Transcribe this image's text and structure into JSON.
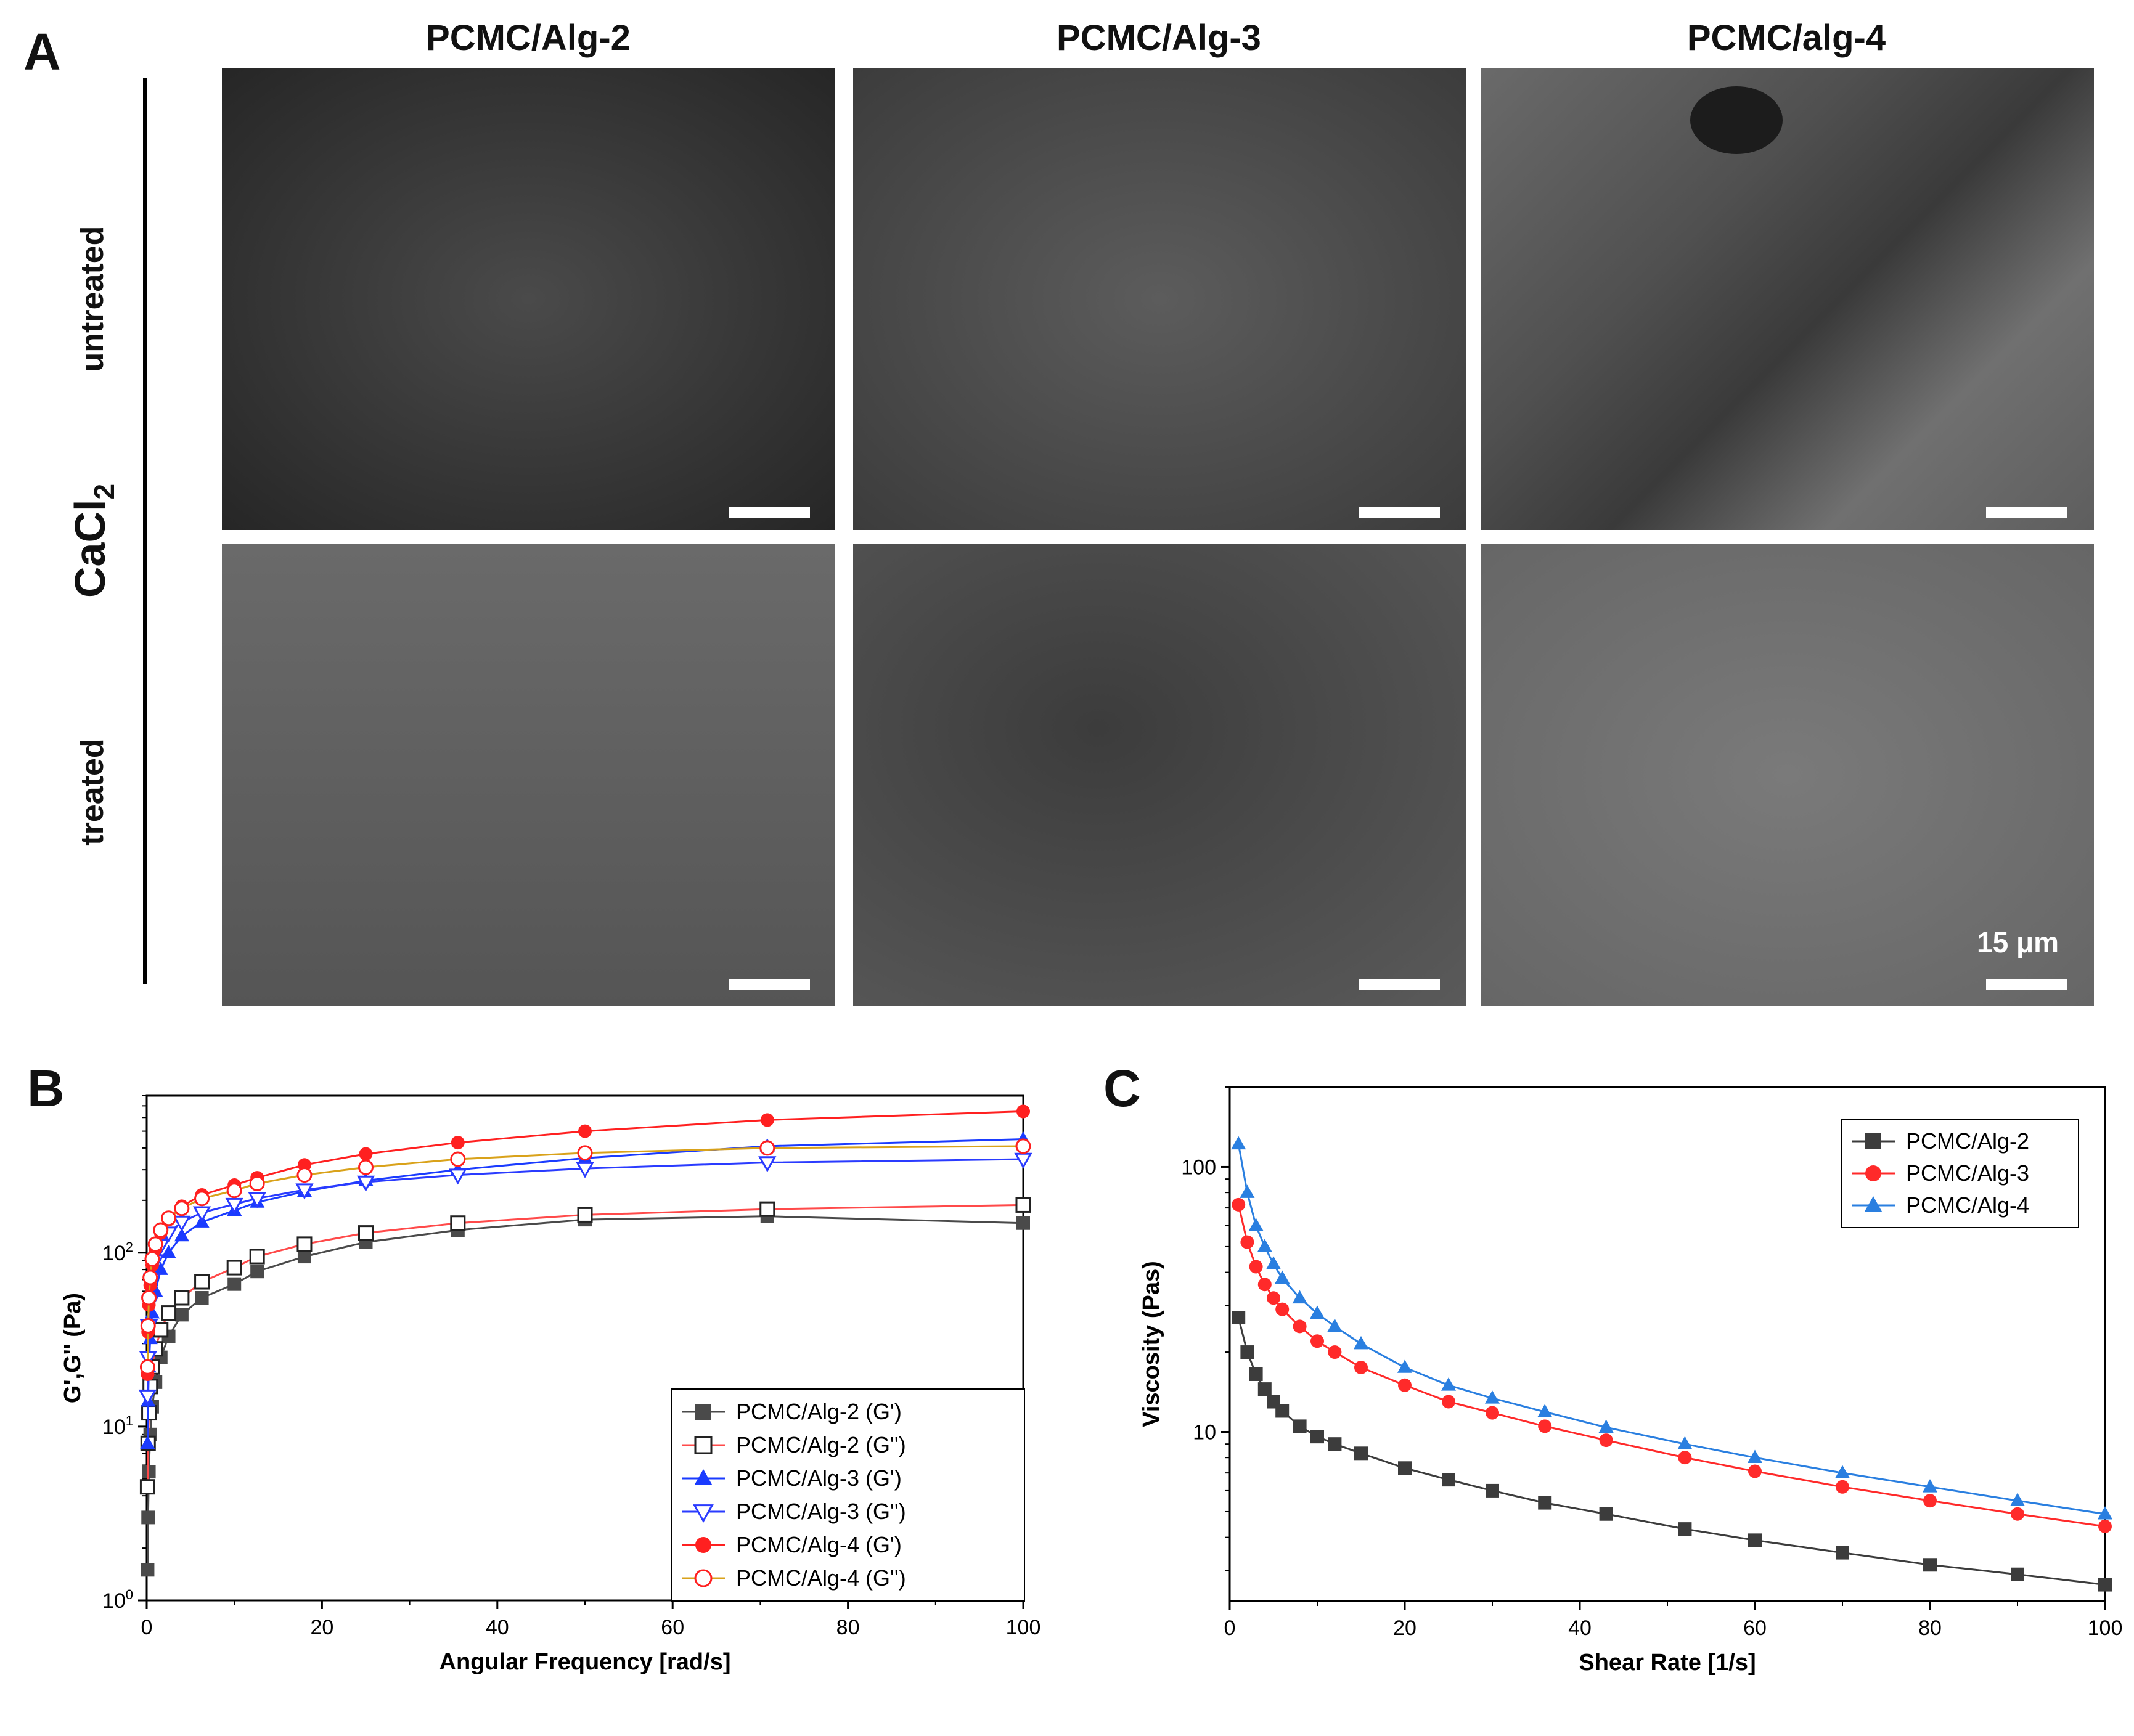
{
  "panel_a": {
    "letter": "A",
    "columns": [
      "PCMC/Alg-2",
      "PCMC/Alg-3",
      "PCMC/alg-4"
    ],
    "group_label_main": "CaCl",
    "group_label_sub": "2",
    "rows": [
      "untreated",
      "treated"
    ],
    "scale_label": "15 μm",
    "colors": {
      "sem_bg": "#5a5a5a",
      "scale_bar": "#ffffff"
    }
  },
  "panel_b": {
    "letter": "B"
  },
  "panel_c": {
    "letter": "C"
  },
  "chart_data": [
    {
      "type": "line",
      "id": "B",
      "xlabel": "Angular Frequency [rad/s]",
      "ylabel": "G',G'' (Pa)",
      "xlim": [
        0,
        100
      ],
      "ylim": [
        1,
        800
      ],
      "yscale": "log",
      "x_ticks": [
        "0",
        "20",
        "40",
        "60",
        "80",
        "100"
      ],
      "y_ticks": [
        {
          "base": "10",
          "exp": "0"
        },
        {
          "base": "10",
          "exp": "1"
        },
        {
          "base": "10",
          "exp": "2"
        }
      ],
      "legend_position": "bottom-right",
      "series": [
        {
          "name": "PCMC/Alg-2 (G')",
          "color": "#4a4a4a",
          "marker": "square-filled",
          "x": [
            0.1,
            0.16,
            0.25,
            0.4,
            0.63,
            1.0,
            1.6,
            2.5,
            4.0,
            6.3,
            10,
            12.6,
            18,
            25,
            35.5,
            50,
            70.8,
            100
          ],
          "y": [
            1.5,
            3.0,
            5.5,
            9.0,
            13,
            18,
            25,
            33,
            44,
            55,
            66,
            78,
            95,
            115,
            135,
            155,
            162,
            148
          ]
        },
        {
          "name": "PCMC/Alg-2 (G'')",
          "color": "#ff4a4a",
          "marker": "square-open",
          "marker_color": "#222222",
          "x": [
            0.1,
            0.16,
            0.25,
            0.4,
            0.63,
            1.0,
            1.6,
            2.5,
            4.0,
            6.3,
            10,
            12.6,
            18,
            25,
            35.5,
            50,
            70.8,
            100
          ],
          "y": [
            4.5,
            8,
            12,
            17,
            22,
            28,
            36,
            45,
            55,
            68,
            82,
            95,
            112,
            130,
            148,
            165,
            178,
            188
          ]
        },
        {
          "name": "PCMC/Alg-3 (G')",
          "color": "#1a3bff",
          "marker": "triangle-filled",
          "x": [
            0.1,
            0.16,
            0.25,
            0.4,
            0.63,
            1.0,
            1.6,
            2.5,
            4.0,
            6.3,
            10,
            12.6,
            18,
            25,
            35.5,
            50,
            70.8,
            100
          ],
          "y": [
            8,
            14,
            22,
            32,
            45,
            60,
            80,
            100,
            125,
            150,
            175,
            195,
            225,
            260,
            300,
            350,
            410,
            450
          ]
        },
        {
          "name": "PCMC/Alg-3 (G'')",
          "color": "#2a3bff",
          "marker": "triangle-down-open",
          "x": [
            0.1,
            0.16,
            0.25,
            0.4,
            0.63,
            1.0,
            1.6,
            2.5,
            4.0,
            6.3,
            10,
            12.6,
            18,
            25,
            35.5,
            50,
            70.8,
            100
          ],
          "y": [
            15,
            25,
            38,
            52,
            70,
            90,
            110,
            130,
            150,
            170,
            190,
            205,
            230,
            255,
            280,
            305,
            330,
            345
          ]
        },
        {
          "name": "PCMC/Alg-4 (G')",
          "color": "#ff2020",
          "marker": "circle-filled",
          "x": [
            0.1,
            0.16,
            0.25,
            0.4,
            0.63,
            1.0,
            1.6,
            2.5,
            4.0,
            6.3,
            10,
            12.6,
            18,
            25,
            35.5,
            50,
            70.8,
            100
          ],
          "y": [
            20,
            35,
            50,
            65,
            85,
            105,
            130,
            155,
            185,
            215,
            245,
            270,
            320,
            370,
            430,
            500,
            580,
            650
          ]
        },
        {
          "name": "PCMC/Alg-4 (G'')",
          "color": "#d9a21a",
          "marker": "circle-open",
          "marker_color": "#ff2020",
          "x": [
            0.1,
            0.16,
            0.25,
            0.4,
            0.63,
            1.0,
            1.6,
            2.5,
            4.0,
            6.3,
            10,
            12.6,
            18,
            25,
            35.5,
            50,
            70.8,
            100
          ],
          "y": [
            22,
            38,
            55,
            72,
            92,
            112,
            135,
            158,
            180,
            205,
            228,
            250,
            280,
            310,
            345,
            375,
            400,
            410
          ]
        }
      ]
    },
    {
      "type": "line",
      "id": "C",
      "xlabel": "Shear Rate [1/s]",
      "ylabel": "Viscosity (Pas)",
      "xlim": [
        0,
        100
      ],
      "ylim": [
        2.3,
        200
      ],
      "yscale": "log",
      "x_ticks": [
        "0",
        "20",
        "40",
        "60",
        "80",
        "100"
      ],
      "y_ticks": [
        "10",
        "100"
      ],
      "legend_position": "top-right",
      "series": [
        {
          "name": "PCMC/Alg-2",
          "color": "#3c3c3c",
          "marker": "square-filled",
          "x": [
            1,
            2,
            3,
            4,
            5,
            6,
            8,
            10,
            12,
            15,
            20,
            25,
            30,
            36,
            43,
            52,
            60,
            70,
            80,
            90,
            100
          ],
          "y": [
            27,
            20,
            16.5,
            14.5,
            13,
            12,
            10.5,
            9.6,
            9.0,
            8.3,
            7.3,
            6.6,
            6.0,
            5.4,
            4.9,
            4.3,
            3.9,
            3.5,
            3.15,
            2.9,
            2.65
          ]
        },
        {
          "name": "PCMC/Alg-3",
          "color": "#ff2a2a",
          "marker": "circle-filled",
          "x": [
            1,
            2,
            3,
            4,
            5,
            6,
            8,
            10,
            12,
            15,
            20,
            25,
            30,
            36,
            43,
            52,
            60,
            70,
            80,
            90,
            100
          ],
          "y": [
            72,
            52,
            42,
            36,
            32,
            29,
            25,
            22,
            20,
            17.5,
            15,
            13,
            11.8,
            10.5,
            9.3,
            8.0,
            7.1,
            6.2,
            5.5,
            4.9,
            4.4
          ]
        },
        {
          "name": "PCMC/Alg-4",
          "color": "#2a7fe0",
          "marker": "triangle-filled",
          "x": [
            1,
            2,
            3,
            4,
            5,
            6,
            8,
            10,
            12,
            15,
            20,
            25,
            30,
            36,
            43,
            52,
            60,
            70,
            80,
            90,
            100
          ],
          "y": [
            122,
            80,
            60,
            50,
            43,
            38,
            32,
            28,
            25,
            21.5,
            17.5,
            15,
            13.4,
            11.9,
            10.4,
            9.0,
            8.0,
            7.0,
            6.2,
            5.5,
            4.9
          ]
        }
      ]
    }
  ]
}
